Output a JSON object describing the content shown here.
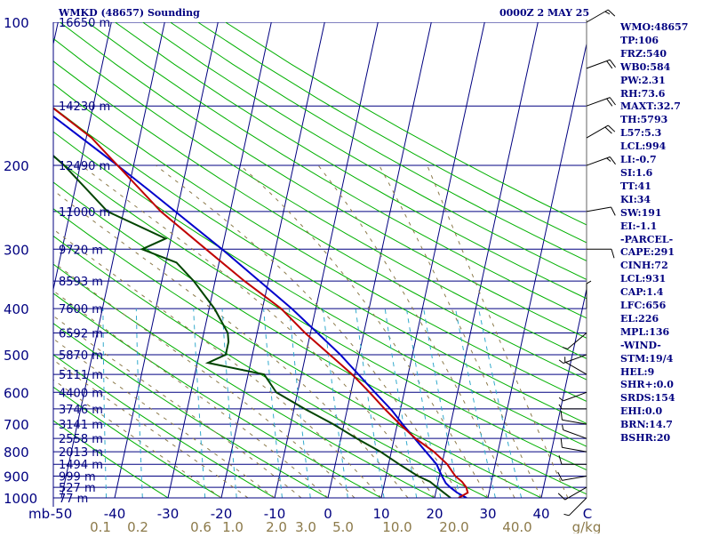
{
  "header": {
    "station": "WMKD (48657) Sounding",
    "datetime": "0000Z  2 MAY 25"
  },
  "indices": [
    "WMO:48657",
    "TP:106",
    "FRZ:540",
    "WB0:584",
    "PW:2.31",
    "RH:73.6",
    "MAXT:32.7",
    "TH:5793",
    "L57:5.3",
    "LCL:994",
    "LI:-0.7",
    "SI:1.6",
    "TT:41",
    "KI:34",
    "SW:191",
    "EI:-1.1",
    "-PARCEL-",
    "CAPE:291",
    "CINH:72",
    "LCL:931",
    "CAP:1.4",
    "LFC:656",
    "EL:226",
    "MPL:136",
    "-WIND-",
    "STM:19/4",
    "HEL:9",
    "SHR+:0.0",
    "SRDS:154",
    "EHI:0.0",
    "BRN:14.7",
    "BSHR:20"
  ],
  "colors": {
    "isobar": "#000080",
    "isotherm": "#000080",
    "dry_adiabat": "#00b000",
    "moist_adiabat": "#8c7a4a",
    "mixing_ratio": "#33aacc",
    "temperature": "#c00000",
    "dewpoint": "#004400",
    "parcel": "#0000cc",
    "wind": "#000000",
    "label": "#000080",
    "mixing_label": "#8c7a4a",
    "dewpoint_axis_label": "#000000"
  },
  "axes": {
    "pressure_unit": "mb",
    "mixing_ratio_unit": "g/kg",
    "pressure_ticks": [
      "100",
      "200",
      "300",
      "400",
      "500",
      "600",
      "700",
      "800",
      "900",
      "1000"
    ],
    "temperature_ticks": [
      "-50",
      "-40",
      "-30",
      "-20",
      "-10",
      "0",
      "10",
      "20",
      "30",
      "40"
    ],
    "mixing_ratio_ticks": [
      "0.1",
      "0.2",
      "0.6",
      "1.0",
      "2.0",
      "3.0",
      "5.0",
      "10.0",
      "20.0",
      "40.0"
    ],
    "axis_end_label": "C",
    "height_labels": [
      {
        "p": 100,
        "label": "16650 m"
      },
      {
        "p": 150,
        "label": "14230 m"
      },
      {
        "p": 200,
        "label": "12490 m"
      },
      {
        "p": 250,
        "label": "11000 m"
      },
      {
        "p": 300,
        "label": "9720 m"
      },
      {
        "p": 350,
        "label": "8593 m"
      },
      {
        "p": 400,
        "label": "7600 m"
      },
      {
        "p": 450,
        "label": "6592 m"
      },
      {
        "p": 500,
        "label": "5870 m"
      },
      {
        "p": 550,
        "label": "5111 m"
      },
      {
        "p": 600,
        "label": "4400 m"
      },
      {
        "p": 650,
        "label": "3746 m"
      },
      {
        "p": 700,
        "label": "3141 m"
      },
      {
        "p": 750,
        "label": "2558 m"
      },
      {
        "p": 800,
        "label": "2013 m"
      },
      {
        "p": 850,
        "label": "1494 m"
      },
      {
        "p": 900,
        "label": "999 m"
      },
      {
        "p": 950,
        "label": "527 m"
      },
      {
        "p": 1000,
        "label": "77 m"
      }
    ]
  },
  "chart_data": {
    "type": "skew-t",
    "title": "WMKD (48657) Sounding",
    "ylabel": "mb",
    "ylim": [
      1000,
      100
    ],
    "xlim": [
      -50,
      50
    ],
    "isobars": [
      100,
      150,
      200,
      250,
      300,
      350,
      400,
      450,
      500,
      550,
      600,
      650,
      700,
      750,
      800,
      850,
      900,
      950,
      1000
    ],
    "isotherms": [
      -150,
      -140,
      -130,
      -120,
      -110,
      -100,
      -90,
      -80,
      -70,
      -60,
      -50,
      -40,
      -30,
      -20,
      -10,
      0,
      10,
      20,
      30,
      40,
      50
    ],
    "dry_adiabats": [
      -30,
      -20,
      -10,
      0,
      10,
      20,
      30,
      40,
      50,
      60,
      70,
      80,
      90,
      100,
      110,
      120,
      130,
      140,
      150,
      160,
      170,
      180
    ],
    "moist_adiabats": [
      -20,
      -15,
      -10,
      -5,
      0,
      5,
      10,
      15,
      20,
      25,
      30,
      35,
      40,
      45
    ],
    "mixing_ratios": [
      0.1,
      0.2,
      0.6,
      1.0,
      2.0,
      3.0,
      5.0,
      8.0,
      12.0,
      16.0,
      20.0,
      30.0,
      40.0
    ],
    "temperature": [
      [
        1000,
        24.5
      ],
      [
        975,
        26
      ],
      [
        950,
        25.5
      ],
      [
        925,
        24.5
      ],
      [
        900,
        23
      ],
      [
        850,
        21
      ],
      [
        800,
        18
      ],
      [
        750,
        14
      ],
      [
        700,
        10.5
      ],
      [
        650,
        7
      ],
      [
        600,
        3.5
      ],
      [
        550,
        -0.5
      ],
      [
        500,
        -5.5
      ],
      [
        450,
        -11
      ],
      [
        400,
        -16.5
      ],
      [
        350,
        -24.5
      ],
      [
        300,
        -33
      ],
      [
        250,
        -43
      ],
      [
        200,
        -53
      ],
      [
        175,
        -59
      ],
      [
        150,
        -68
      ],
      [
        125,
        -73
      ],
      [
        110,
        -74
      ],
      [
        100,
        -71
      ]
    ],
    "dewpoint": [
      [
        1000,
        23
      ],
      [
        975,
        21.5
      ],
      [
        950,
        20
      ],
      [
        925,
        18.5
      ],
      [
        900,
        16
      ],
      [
        850,
        12
      ],
      [
        800,
        8
      ],
      [
        750,
        3
      ],
      [
        700,
        -2
      ],
      [
        650,
        -8
      ],
      [
        600,
        -14
      ],
      [
        550,
        -17
      ],
      [
        520,
        -28
      ],
      [
        500,
        -25
      ],
      [
        470,
        -25
      ],
      [
        450,
        -25.5
      ],
      [
        400,
        -29
      ],
      [
        350,
        -34
      ],
      [
        320,
        -38
      ],
      [
        300,
        -45
      ],
      [
        285,
        -41
      ],
      [
        250,
        -53
      ],
      [
        200,
        -63
      ],
      [
        175,
        -70
      ],
      [
        150,
        -77
      ],
      [
        125,
        -84
      ],
      [
        110,
        -86
      ],
      [
        100,
        -84
      ]
    ],
    "parcel": [
      [
        1000,
        26
      ],
      [
        975,
        24
      ],
      [
        950,
        22.5
      ],
      [
        931,
        21.5
      ],
      [
        900,
        20.5
      ],
      [
        850,
        19
      ],
      [
        800,
        16.5
      ],
      [
        700,
        11
      ],
      [
        656,
        8.5
      ],
      [
        600,
        4.5
      ],
      [
        500,
        -3.5
      ],
      [
        400,
        -14.5
      ],
      [
        300,
        -30
      ],
      [
        226,
        -46
      ],
      [
        200,
        -53
      ],
      [
        150,
        -70
      ],
      [
        125,
        -81
      ],
      [
        110,
        -88
      ]
    ],
    "wind": [
      {
        "p": 1000,
        "dir": 225,
        "spd": 5
      },
      {
        "p": 950,
        "dir": 240,
        "spd": 10
      },
      {
        "p": 900,
        "dir": 260,
        "spd": 10
      },
      {
        "p": 850,
        "dir": 270,
        "spd": 10
      },
      {
        "p": 800,
        "dir": 280,
        "spd": 10
      },
      {
        "p": 750,
        "dir": 290,
        "spd": 5
      },
      {
        "p": 700,
        "dir": 280,
        "spd": 10
      },
      {
        "p": 650,
        "dir": 270,
        "spd": 5
      },
      {
        "p": 600,
        "dir": 250,
        "spd": 5
      },
      {
        "p": 550,
        "dir": 300,
        "spd": 5
      },
      {
        "p": 500,
        "dir": 250,
        "spd": 5
      },
      {
        "p": 450,
        "dir": 230,
        "spd": 5
      },
      {
        "p": 400,
        "dir": 0,
        "spd": 5
      },
      {
        "p": 300,
        "dir": 90,
        "spd": 10
      },
      {
        "p": 250,
        "dir": 80,
        "spd": 10
      },
      {
        "p": 200,
        "dir": 70,
        "spd": 15
      },
      {
        "p": 175,
        "dir": 60,
        "spd": 20
      },
      {
        "p": 150,
        "dir": 70,
        "spd": 20
      },
      {
        "p": 125,
        "dir": 70,
        "spd": 20
      },
      {
        "p": 100,
        "dir": 60,
        "spd": 15
      }
    ]
  }
}
